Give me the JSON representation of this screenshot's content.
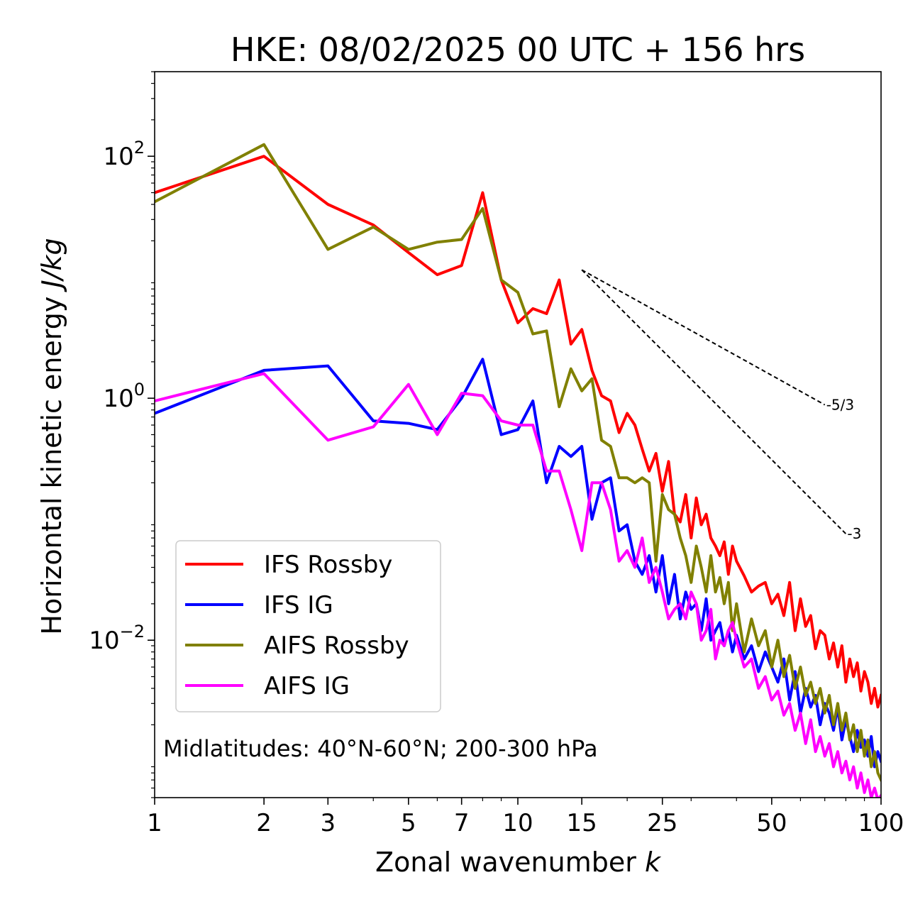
{
  "chart_data": {
    "type": "line",
    "title": "HKE: 08/02/2025 00 UTC + 156 hrs",
    "xlabel_prefix": "Zonal wavenumber ",
    "xlabel_var": "k",
    "ylabel_prefix": "Horizontal kinetic energy ",
    "ylabel_unit": "J/kg",
    "xscale": "log",
    "yscale": "log",
    "xlim": [
      1,
      100
    ],
    "ylim": [
      0.0005,
      500
    ],
    "x_ticks": [
      1,
      2,
      3,
      5,
      7,
      10,
      15,
      25,
      50,
      100
    ],
    "x_tick_labels": [
      "1",
      "2",
      "3",
      "5",
      "7",
      "10",
      "15",
      "25",
      "50",
      "100"
    ],
    "y_ticks": [
      {
        "value": 100,
        "base": "10",
        "exp": "2"
      },
      {
        "value": 1,
        "base": "10",
        "exp": "0"
      },
      {
        "value": 0.01,
        "base": "10",
        "exp": "−2"
      }
    ],
    "annotation": "Midlatitudes: 40°N-60°N; 200-300 hPa",
    "legend_position": "lower-left",
    "grid": false,
    "reference_lines": [
      {
        "label": "-5/3",
        "slope": -1.6667,
        "x": [
          15,
          70
        ],
        "y_start": 11.5
      },
      {
        "label": "-3",
        "slope": -3,
        "x": [
          15,
          80
        ],
        "y_start": 11.5
      }
    ],
    "series": [
      {
        "name": "IFS Rossby",
        "color": "#ff0000",
        "x": [
          1,
          2,
          3,
          4,
          5,
          6,
          7,
          8,
          9,
          10,
          11,
          12,
          13,
          14,
          15,
          16,
          17,
          18,
          19,
          20,
          21,
          22,
          23,
          24,
          25,
          26,
          27,
          28,
          29,
          30,
          31,
          32,
          33,
          34,
          35,
          36,
          37,
          38,
          39,
          40,
          42,
          44,
          46,
          48,
          50,
          52,
          54,
          56,
          58,
          60,
          62,
          64,
          66,
          68,
          70,
          72,
          74,
          76,
          78,
          80,
          82,
          84,
          86,
          88,
          90,
          92,
          94,
          96,
          98,
          100
        ],
        "y": [
          50,
          100,
          40,
          27,
          16,
          10.5,
          12.5,
          50,
          9.5,
          4.2,
          5.5,
          5,
          9.5,
          2.8,
          3.7,
          1.7,
          1.05,
          0.95,
          0.52,
          0.75,
          0.6,
          0.38,
          0.25,
          0.35,
          0.17,
          0.3,
          0.11,
          0.095,
          0.16,
          0.07,
          0.15,
          0.09,
          0.11,
          0.07,
          0.06,
          0.05,
          0.065,
          0.035,
          0.06,
          0.045,
          0.034,
          0.025,
          0.028,
          0.03,
          0.02,
          0.024,
          0.016,
          0.03,
          0.012,
          0.022,
          0.013,
          0.016,
          0.0085,
          0.012,
          0.011,
          0.007,
          0.0095,
          0.006,
          0.009,
          0.0045,
          0.007,
          0.005,
          0.0065,
          0.0038,
          0.0055,
          0.0045,
          0.003,
          0.004,
          0.0028,
          0.0035
        ]
      },
      {
        "name": "IFS IG",
        "color": "#0000ff",
        "x": [
          1,
          2,
          3,
          4,
          5,
          6,
          7,
          8,
          9,
          10,
          11,
          12,
          13,
          14,
          15,
          16,
          17,
          18,
          19,
          20,
          21,
          22,
          23,
          24,
          25,
          26,
          27,
          28,
          29,
          30,
          31,
          32,
          33,
          34,
          35,
          36,
          37,
          38,
          39,
          40,
          42,
          44,
          46,
          48,
          50,
          52,
          54,
          56,
          58,
          60,
          62,
          64,
          66,
          68,
          70,
          72,
          74,
          76,
          78,
          80,
          82,
          84,
          86,
          88,
          90,
          92,
          94,
          96,
          98,
          100
        ],
        "y": [
          0.75,
          1.7,
          1.85,
          0.65,
          0.62,
          0.55,
          1.0,
          2.1,
          0.5,
          0.55,
          0.95,
          0.2,
          0.4,
          0.33,
          0.4,
          0.1,
          0.2,
          0.22,
          0.08,
          0.09,
          0.045,
          0.035,
          0.05,
          0.025,
          0.05,
          0.02,
          0.035,
          0.015,
          0.025,
          0.018,
          0.02,
          0.012,
          0.022,
          0.01,
          0.012,
          0.014,
          0.009,
          0.012,
          0.008,
          0.011,
          0.007,
          0.009,
          0.0055,
          0.008,
          0.006,
          0.0045,
          0.007,
          0.0032,
          0.0055,
          0.0025,
          0.004,
          0.0028,
          0.0035,
          0.002,
          0.003,
          0.0025,
          0.0018,
          0.0028,
          0.0015,
          0.0022,
          0.0016,
          0.0012,
          0.0018,
          0.0013,
          0.0015,
          0.0011,
          0.0016,
          0.0009,
          0.0012,
          0.001
        ]
      },
      {
        "name": "AIFS Rossby",
        "color": "#808000",
        "x": [
          1,
          2,
          3,
          4,
          5,
          6,
          7,
          8,
          9,
          10,
          11,
          12,
          13,
          14,
          15,
          16,
          17,
          18,
          19,
          20,
          21,
          22,
          23,
          24,
          25,
          26,
          27,
          28,
          29,
          30,
          31,
          32,
          33,
          34,
          35,
          36,
          37,
          38,
          39,
          40,
          42,
          44,
          46,
          48,
          50,
          52,
          54,
          56,
          58,
          60,
          62,
          64,
          66,
          68,
          70,
          72,
          74,
          76,
          78,
          80,
          82,
          84,
          86,
          88,
          90,
          92,
          94,
          96,
          98,
          100
        ],
        "y": [
          42,
          125,
          17,
          26,
          17,
          19.5,
          20.5,
          37,
          9.5,
          7.5,
          3.4,
          3.6,
          0.85,
          1.75,
          1.15,
          1.45,
          0.45,
          0.4,
          0.22,
          0.22,
          0.2,
          0.22,
          0.2,
          0.045,
          0.16,
          0.12,
          0.11,
          0.07,
          0.05,
          0.03,
          0.06,
          0.04,
          0.025,
          0.05,
          0.025,
          0.033,
          0.02,
          0.03,
          0.012,
          0.02,
          0.008,
          0.015,
          0.009,
          0.012,
          0.006,
          0.01,
          0.005,
          0.0075,
          0.004,
          0.006,
          0.0035,
          0.0045,
          0.003,
          0.004,
          0.0025,
          0.0035,
          0.002,
          0.003,
          0.0018,
          0.0025,
          0.0015,
          0.002,
          0.0012,
          0.0018,
          0.0011,
          0.0015,
          0.0009,
          0.0012,
          0.0008,
          0.0007
        ]
      },
      {
        "name": "AIFS IG",
        "color": "#ff00ff",
        "x": [
          1,
          2,
          3,
          4,
          5,
          6,
          7,
          8,
          9,
          10,
          11,
          12,
          13,
          14,
          15,
          16,
          17,
          18,
          19,
          20,
          21,
          22,
          23,
          24,
          25,
          26,
          27,
          28,
          29,
          30,
          31,
          32,
          33,
          34,
          35,
          36,
          37,
          38,
          39,
          40,
          42,
          44,
          46,
          48,
          50,
          52,
          54,
          56,
          58,
          60,
          62,
          64,
          66,
          68,
          70,
          72,
          74,
          76,
          78,
          80,
          82,
          84,
          86,
          88,
          90,
          92,
          94,
          96,
          98,
          100
        ],
        "y": [
          0.95,
          1.6,
          0.45,
          0.58,
          1.3,
          0.5,
          1.1,
          1.05,
          0.65,
          0.6,
          0.6,
          0.25,
          0.25,
          0.12,
          0.055,
          0.2,
          0.2,
          0.12,
          0.045,
          0.055,
          0.04,
          0.07,
          0.03,
          0.04,
          0.025,
          0.015,
          0.018,
          0.02,
          0.015,
          0.025,
          0.02,
          0.01,
          0.012,
          0.018,
          0.007,
          0.01,
          0.009,
          0.012,
          0.014,
          0.01,
          0.006,
          0.007,
          0.004,
          0.005,
          0.0032,
          0.0038,
          0.0024,
          0.003,
          0.0018,
          0.0025,
          0.0014,
          0.0022,
          0.0012,
          0.0016,
          0.0011,
          0.0014,
          0.0009,
          0.0012,
          0.0008,
          0.001,
          0.0007,
          0.0009,
          0.0006,
          0.0008,
          0.00055,
          0.0007,
          0.0005,
          0.0006,
          0.00048,
          0.00052
        ]
      }
    ]
  }
}
